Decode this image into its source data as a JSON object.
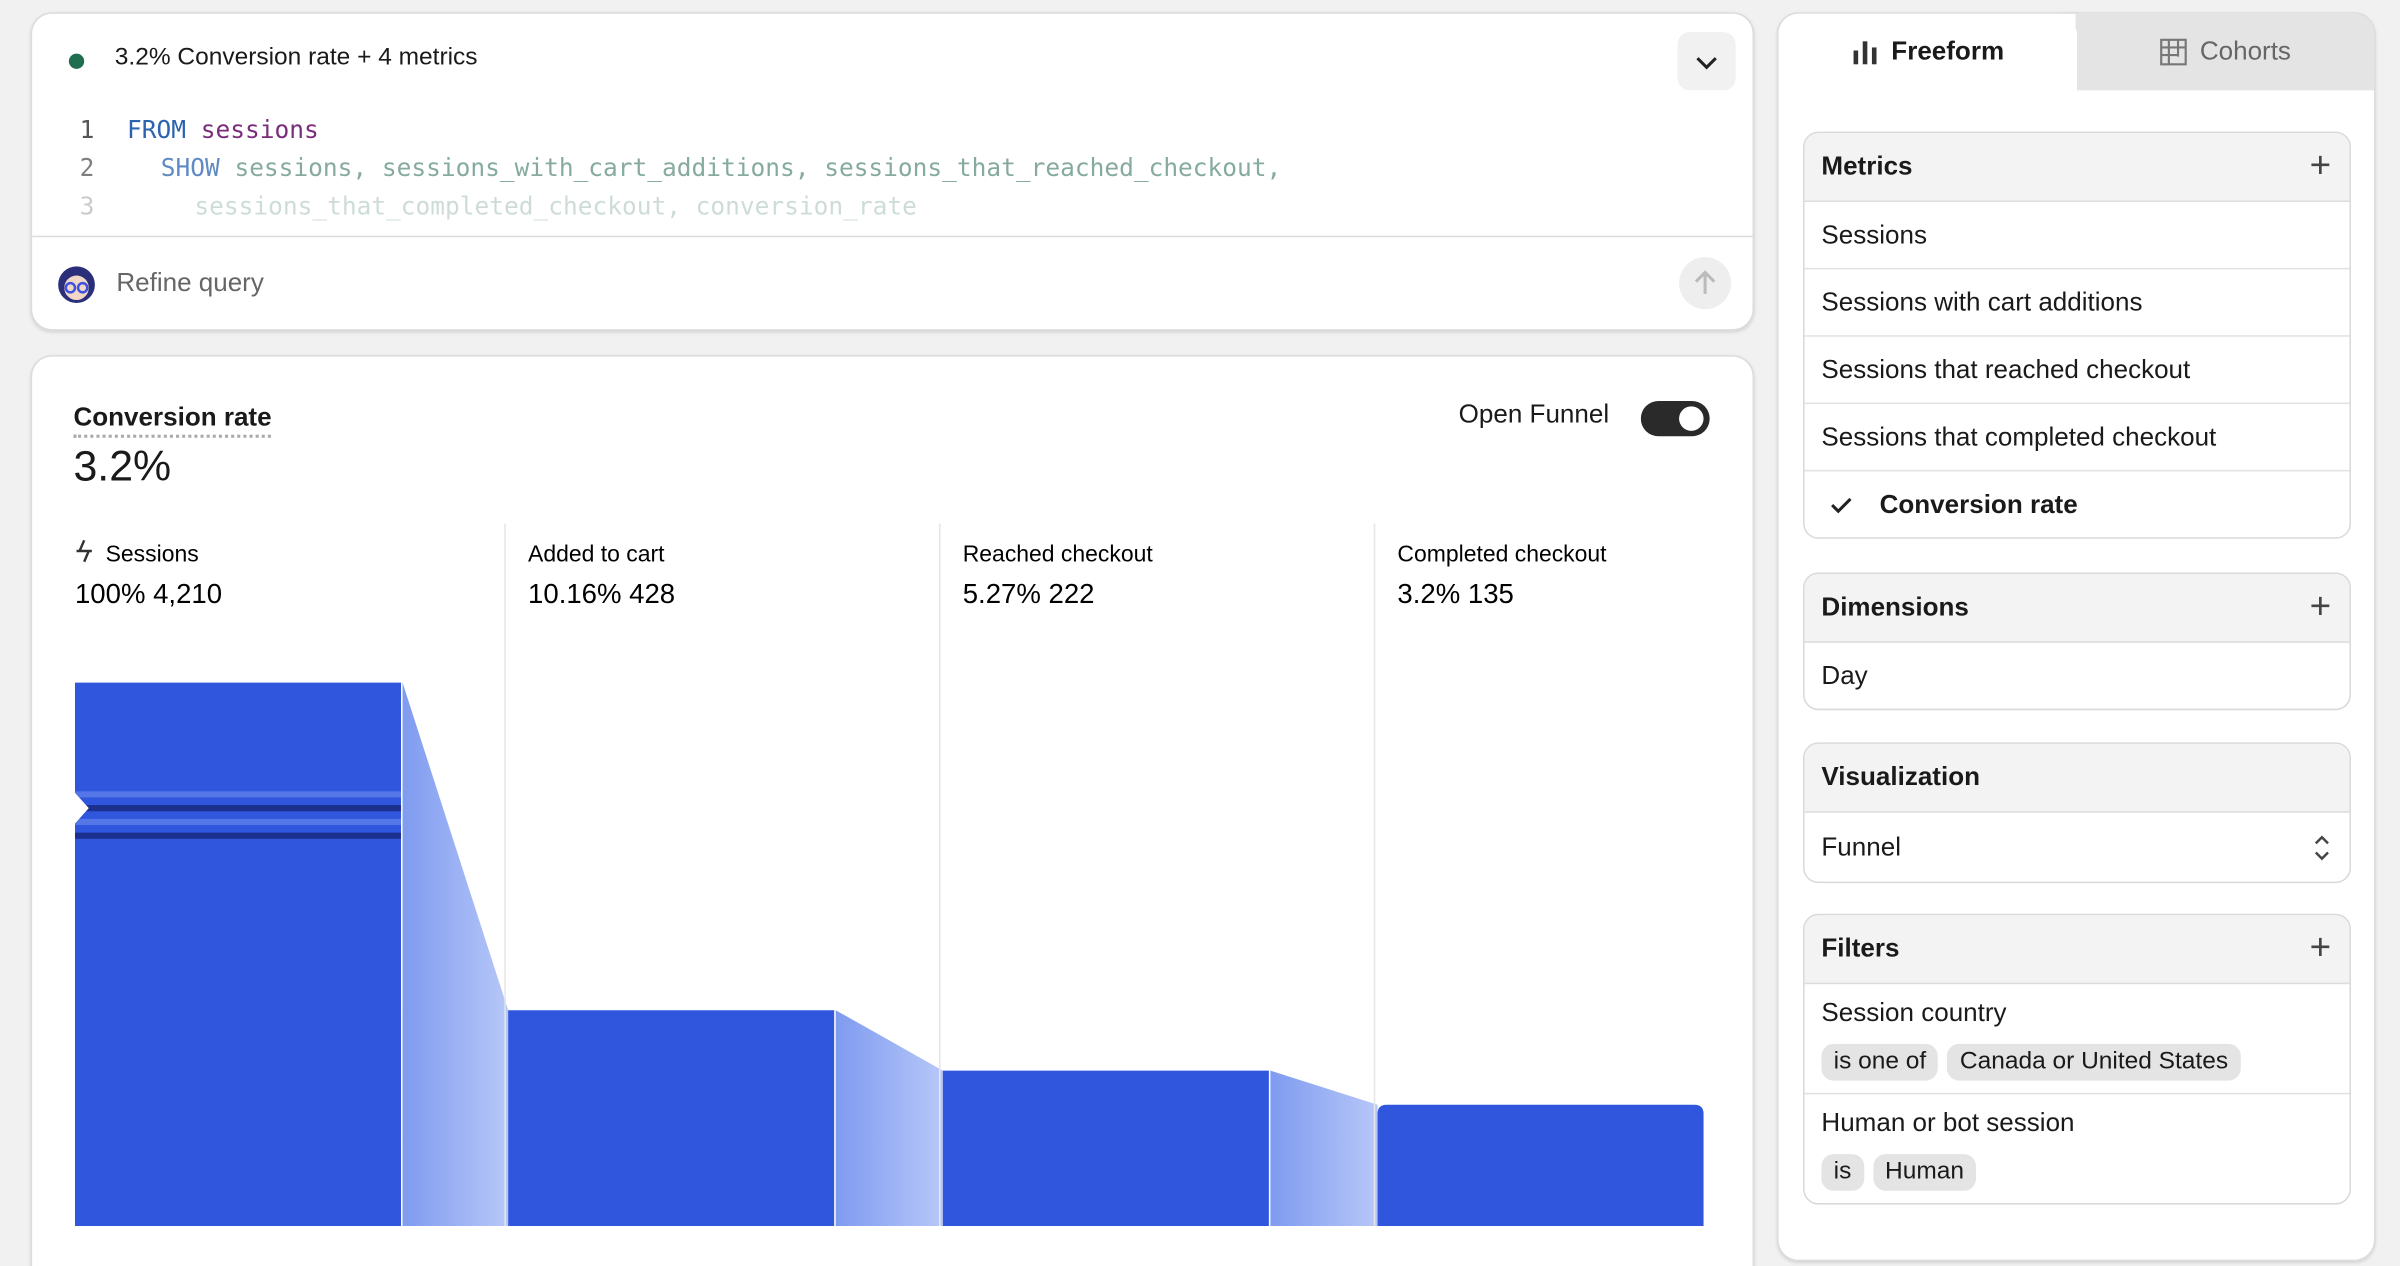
{
  "query": {
    "status": "3.2% Conversion rate + 4 metrics",
    "lines": [
      {
        "number": 1,
        "keyword": "FROM",
        "text": "sessions"
      },
      {
        "number": 2,
        "keyword": "SHOW",
        "text": "sessions, sessions_with_cart_additions, sessions_that_reached_checkout,"
      },
      {
        "number": 3,
        "text": "sessions_that_completed_checkout, conversion_rate"
      }
    ],
    "placeholder": "Refine query"
  },
  "chart_data": {
    "type": "funnel",
    "title": "Conversion rate",
    "summary": {
      "value": 3.2,
      "label": "3.2%"
    },
    "toggle": "Open Funnel",
    "categories": [
      "Sessions",
      "Added to cart",
      "Reached checkout",
      "Completed checkout"
    ],
    "values": [
      4210,
      428,
      222,
      135
    ],
    "value_labels": [
      "4,210",
      "428",
      "222",
      "135"
    ],
    "percents": [
      100,
      10.16,
      5.27,
      3.2
    ],
    "percent_labels": [
      "100%",
      "10.16%",
      "5.27%",
      "3.2%"
    ],
    "color": "#2f56dc"
  },
  "sidebar": {
    "tabs": [
      "Freeform",
      "Cohorts"
    ],
    "metrics": {
      "title": "Metrics",
      "items": [
        "Sessions",
        "Sessions with cart additions",
        "Sessions that reached checkout",
        "Sessions that completed checkout",
        "Conversion rate"
      ],
      "selected": 4
    },
    "dimensions": {
      "title": "Dimensions",
      "items": [
        "Day"
      ]
    },
    "visualization": {
      "title": "Visualization",
      "value": "Funnel"
    },
    "filters": {
      "title": "Filters",
      "items": [
        {
          "field": "Session country",
          "operator": "is one of",
          "value": "Canada or United States"
        },
        {
          "field": "Human or bot session",
          "operator": "is",
          "value": "Human"
        }
      ]
    }
  }
}
